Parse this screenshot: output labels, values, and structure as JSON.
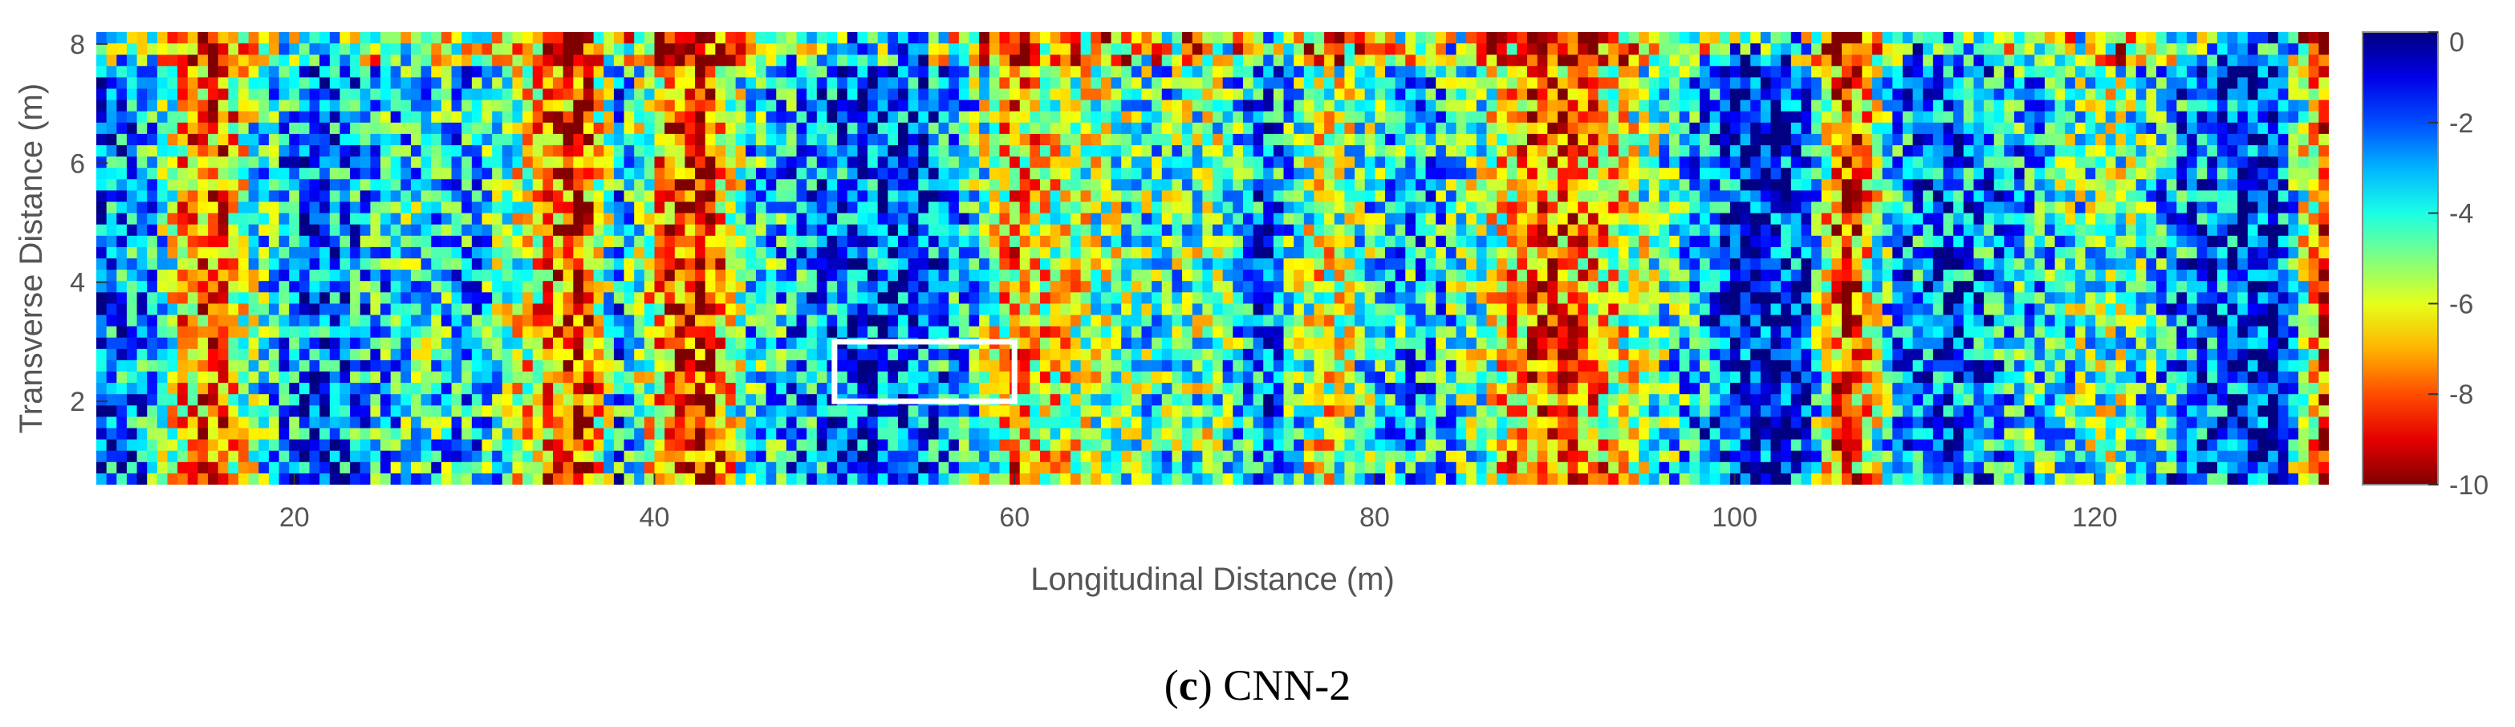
{
  "chart_data": {
    "type": "heatmap",
    "title": "",
    "xlabel": "Longitudinal Distance (m)",
    "ylabel": "Transverse Distance (m)",
    "xlim": [
      9,
      133
    ],
    "ylim": [
      0.6,
      8.2
    ],
    "xticks": [
      20,
      40,
      60,
      80,
      100,
      120
    ],
    "yticks": [
      2,
      4,
      6,
      8
    ],
    "colorbar": {
      "colormap": "jet",
      "range": [
        -10,
        0
      ],
      "ticks": [
        0,
        -2,
        -4,
        -6,
        -8,
        -10
      ],
      "reversed": true
    },
    "highlight_box": {
      "x_range": [
        50,
        60
      ],
      "y_range": [
        2.0,
        3.0
      ],
      "color": "#ffffff"
    },
    "column_profile": [
      {
        "x": 9,
        "v": -2
      },
      {
        "x": 12,
        "v": -3
      },
      {
        "x": 14,
        "v": -7
      },
      {
        "x": 16,
        "v": -8
      },
      {
        "x": 18,
        "v": -4
      },
      {
        "x": 21,
        "v": -2
      },
      {
        "x": 24,
        "v": -3
      },
      {
        "x": 27,
        "v": -4
      },
      {
        "x": 30,
        "v": -3
      },
      {
        "x": 33,
        "v": -6
      },
      {
        "x": 36,
        "v": -9
      },
      {
        "x": 38,
        "v": -3
      },
      {
        "x": 41,
        "v": -8
      },
      {
        "x": 43,
        "v": -9
      },
      {
        "x": 45,
        "v": -4
      },
      {
        "x": 48,
        "v": -3
      },
      {
        "x": 51,
        "v": -2
      },
      {
        "x": 54,
        "v": -2
      },
      {
        "x": 57,
        "v": -3
      },
      {
        "x": 60,
        "v": -7
      },
      {
        "x": 62,
        "v": -6
      },
      {
        "x": 65,
        "v": -5
      },
      {
        "x": 68,
        "v": -4
      },
      {
        "x": 71,
        "v": -5
      },
      {
        "x": 74,
        "v": -2
      },
      {
        "x": 77,
        "v": -6
      },
      {
        "x": 80,
        "v": -4
      },
      {
        "x": 83,
        "v": -3
      },
      {
        "x": 86,
        "v": -5
      },
      {
        "x": 89,
        "v": -8
      },
      {
        "x": 92,
        "v": -7
      },
      {
        "x": 95,
        "v": -5
      },
      {
        "x": 98,
        "v": -3
      },
      {
        "x": 101,
        "v": -1
      },
      {
        "x": 104,
        "v": -2
      },
      {
        "x": 106,
        "v": -9
      },
      {
        "x": 109,
        "v": -3
      },
      {
        "x": 112,
        "v": -2
      },
      {
        "x": 115,
        "v": -3
      },
      {
        "x": 118,
        "v": -4
      },
      {
        "x": 121,
        "v": -5
      },
      {
        "x": 124,
        "v": -3
      },
      {
        "x": 127,
        "v": -2
      },
      {
        "x": 130,
        "v": -1
      },
      {
        "x": 133,
        "v": -9
      }
    ]
  },
  "caption": {
    "letter": "c",
    "text": " CNN-2"
  }
}
